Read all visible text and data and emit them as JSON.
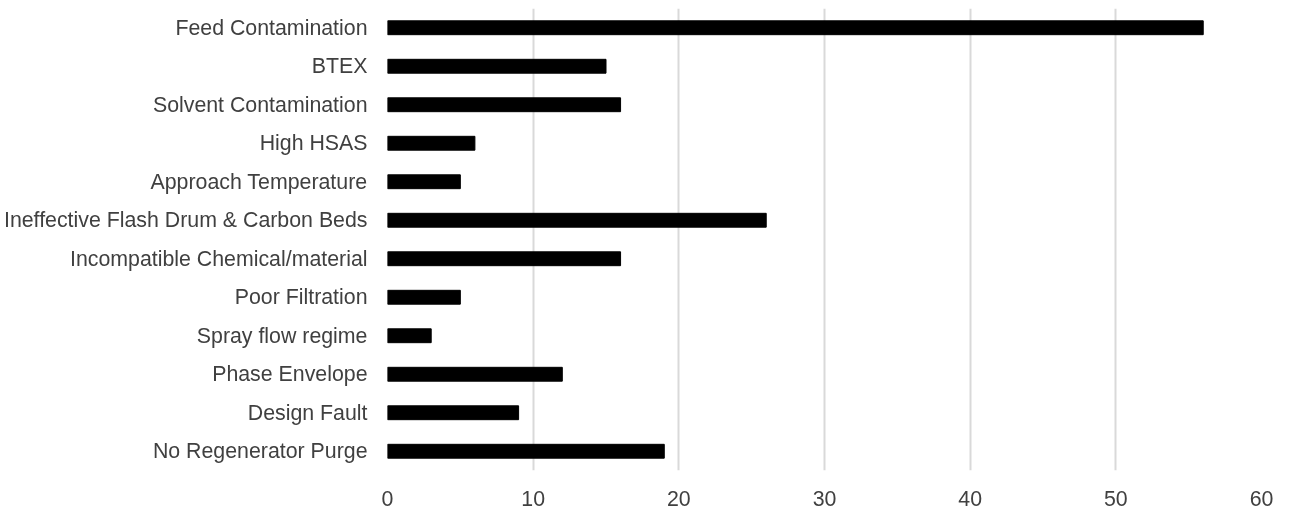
{
  "chart_data": {
    "type": "bar",
    "orientation": "horizontal",
    "categories": [
      "Feed Contamination",
      "BTEX",
      "Solvent Contamination",
      "High HSAS",
      "Approach Temperature",
      "Ineffective Flash Drum & Carbon Beds",
      "Incompatible Chemical/material",
      "Poor Filtration",
      "Spray flow regime",
      "Phase Envelope",
      "Design Fault",
      "No Regenerator Purge"
    ],
    "values": [
      56,
      15,
      16,
      6,
      5,
      26,
      16,
      5,
      3,
      12,
      9,
      19
    ],
    "color": "#000000",
    "xlim": [
      0,
      60
    ],
    "xticks": [
      0,
      10,
      20,
      30,
      40,
      50,
      60
    ],
    "grid": "x"
  }
}
